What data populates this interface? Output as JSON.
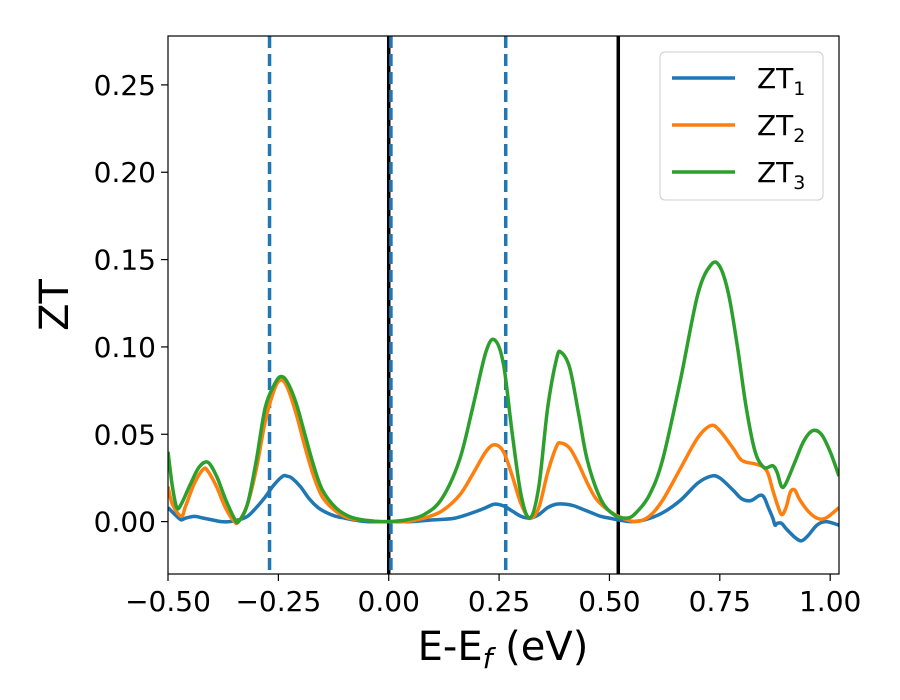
{
  "chart_data": {
    "type": "line",
    "xlabel_main": "E-E",
    "xlabel_sub": "f",
    "xlabel_unit": " (eV)",
    "ylabel": "ZT",
    "xlim": [
      -0.5,
      1.02
    ],
    "ylim": [
      -0.03,
      0.278
    ],
    "xticks": [
      -0.5,
      -0.25,
      0.0,
      0.25,
      0.5,
      0.75,
      1.0
    ],
    "xtick_labels": [
      "−0.50",
      "−0.25",
      "0.00",
      "0.25",
      "0.50",
      "0.75",
      "1.00"
    ],
    "yticks": [
      0.0,
      0.05,
      0.1,
      0.15,
      0.2,
      0.25
    ],
    "ytick_labels": [
      "0.00",
      "0.05",
      "0.10",
      "0.15",
      "0.20",
      "0.25"
    ],
    "legend_position": "top-right",
    "grid": false,
    "vlines": [
      {
        "x": -0.27,
        "style": "dashed",
        "color": "#1f77b4"
      },
      {
        "x": 0.0,
        "style": "solid",
        "color": "#000000"
      },
      {
        "x": 0.005,
        "style": "dashed",
        "color": "#1f77b4"
      },
      {
        "x": 0.265,
        "style": "dashed",
        "color": "#1f77b4"
      },
      {
        "x": 0.52,
        "style": "solid",
        "color": "#000000"
      }
    ],
    "series": [
      {
        "name_main": "ZT",
        "name_sub": "1",
        "color": "#1f77b4",
        "points": [
          [
            -0.5,
            0.008
          ],
          [
            -0.48,
            0.003
          ],
          [
            -0.47,
            0.001
          ],
          [
            -0.46,
            0.002
          ],
          [
            -0.44,
            0.003
          ],
          [
            -0.42,
            0.002
          ],
          [
            -0.4,
            0.001
          ],
          [
            -0.38,
            0.0
          ],
          [
            -0.36,
            0.0
          ],
          [
            -0.34,
            0.001
          ],
          [
            -0.32,
            0.003
          ],
          [
            -0.3,
            0.008
          ],
          [
            -0.28,
            0.014
          ],
          [
            -0.26,
            0.021
          ],
          [
            -0.24,
            0.026
          ],
          [
            -0.23,
            0.026
          ],
          [
            -0.22,
            0.025
          ],
          [
            -0.2,
            0.02
          ],
          [
            -0.18,
            0.013
          ],
          [
            -0.16,
            0.008
          ],
          [
            -0.14,
            0.005
          ],
          [
            -0.12,
            0.003
          ],
          [
            -0.1,
            0.002
          ],
          [
            -0.08,
            0.001
          ],
          [
            -0.05,
            0.0
          ],
          [
            0.0,
            0.0
          ],
          [
            0.05,
            0.0
          ],
          [
            0.1,
            0.001
          ],
          [
            0.15,
            0.002
          ],
          [
            0.2,
            0.006
          ],
          [
            0.22,
            0.008
          ],
          [
            0.24,
            0.01
          ],
          [
            0.26,
            0.009
          ],
          [
            0.28,
            0.006
          ],
          [
            0.3,
            0.003
          ],
          [
            0.32,
            0.002
          ],
          [
            0.34,
            0.004
          ],
          [
            0.36,
            0.008
          ],
          [
            0.38,
            0.01
          ],
          [
            0.4,
            0.01
          ],
          [
            0.42,
            0.009
          ],
          [
            0.44,
            0.007
          ],
          [
            0.46,
            0.005
          ],
          [
            0.48,
            0.003
          ],
          [
            0.5,
            0.002
          ],
          [
            0.52,
            0.001
          ],
          [
            0.55,
            0.0
          ],
          [
            0.58,
            0.001
          ],
          [
            0.62,
            0.005
          ],
          [
            0.66,
            0.012
          ],
          [
            0.7,
            0.022
          ],
          [
            0.73,
            0.026
          ],
          [
            0.75,
            0.025
          ],
          [
            0.78,
            0.018
          ],
          [
            0.8,
            0.013
          ],
          [
            0.82,
            0.012
          ],
          [
            0.84,
            0.015
          ],
          [
            0.85,
            0.014
          ],
          [
            0.86,
            0.008
          ],
          [
            0.87,
            0.002
          ],
          [
            0.875,
            -0.002
          ],
          [
            0.88,
            -0.001
          ],
          [
            0.89,
            -0.001
          ],
          [
            0.9,
            -0.004
          ],
          [
            0.92,
            -0.009
          ],
          [
            0.935,
            -0.011
          ],
          [
            0.95,
            -0.008
          ],
          [
            0.97,
            -0.002
          ],
          [
            0.99,
            0.0
          ],
          [
            1.02,
            -0.002
          ]
        ]
      },
      {
        "name_main": "ZT",
        "name_sub": "2",
        "color": "#ff7f0e",
        "points": [
          [
            -0.5,
            0.02
          ],
          [
            -0.49,
            0.01
          ],
          [
            -0.47,
            0.003
          ],
          [
            -0.46,
            0.009
          ],
          [
            -0.44,
            0.022
          ],
          [
            -0.42,
            0.03
          ],
          [
            -0.41,
            0.029
          ],
          [
            -0.39,
            0.02
          ],
          [
            -0.37,
            0.008
          ],
          [
            -0.35,
            0.0
          ],
          [
            -0.34,
            0.0
          ],
          [
            -0.32,
            0.01
          ],
          [
            -0.3,
            0.03
          ],
          [
            -0.28,
            0.057
          ],
          [
            -0.26,
            0.075
          ],
          [
            -0.245,
            0.081
          ],
          [
            -0.23,
            0.077
          ],
          [
            -0.21,
            0.062
          ],
          [
            -0.19,
            0.043
          ],
          [
            -0.17,
            0.026
          ],
          [
            -0.15,
            0.014
          ],
          [
            -0.12,
            0.006
          ],
          [
            -0.09,
            0.002
          ],
          [
            -0.06,
            0.001
          ],
          [
            -0.02,
            0.0
          ],
          [
            0.0,
            0.0
          ],
          [
            0.04,
            0.0
          ],
          [
            0.08,
            0.002
          ],
          [
            0.12,
            0.006
          ],
          [
            0.16,
            0.015
          ],
          [
            0.19,
            0.027
          ],
          [
            0.22,
            0.04
          ],
          [
            0.24,
            0.044
          ],
          [
            0.26,
            0.04
          ],
          [
            0.28,
            0.026
          ],
          [
            0.3,
            0.01
          ],
          [
            0.32,
            0.002
          ],
          [
            0.34,
            0.008
          ],
          [
            0.36,
            0.028
          ],
          [
            0.38,
            0.043
          ],
          [
            0.39,
            0.045
          ],
          [
            0.41,
            0.042
          ],
          [
            0.43,
            0.033
          ],
          [
            0.45,
            0.022
          ],
          [
            0.47,
            0.013
          ],
          [
            0.5,
            0.006
          ],
          [
            0.53,
            0.002
          ],
          [
            0.56,
            0.0
          ],
          [
            0.59,
            0.003
          ],
          [
            0.62,
            0.012
          ],
          [
            0.66,
            0.03
          ],
          [
            0.7,
            0.048
          ],
          [
            0.73,
            0.055
          ],
          [
            0.75,
            0.052
          ],
          [
            0.78,
            0.042
          ],
          [
            0.8,
            0.035
          ],
          [
            0.83,
            0.033
          ],
          [
            0.85,
            0.031
          ],
          [
            0.86,
            0.027
          ],
          [
            0.87,
            0.018
          ],
          [
            0.88,
            0.01
          ],
          [
            0.89,
            0.004
          ],
          [
            0.9,
            0.008
          ],
          [
            0.91,
            0.017
          ],
          [
            0.92,
            0.018
          ],
          [
            0.93,
            0.013
          ],
          [
            0.95,
            0.006
          ],
          [
            0.97,
            0.002
          ],
          [
            0.99,
            0.002
          ],
          [
            1.02,
            0.008
          ]
        ]
      },
      {
        "name_main": "ZT",
        "name_sub": "3",
        "color": "#2ca02c",
        "points": [
          [
            -0.5,
            0.04
          ],
          [
            -0.49,
            0.02
          ],
          [
            -0.48,
            0.008
          ],
          [
            -0.47,
            0.01
          ],
          [
            -0.45,
            0.021
          ],
          [
            -0.43,
            0.031
          ],
          [
            -0.41,
            0.034
          ],
          [
            -0.39,
            0.026
          ],
          [
            -0.37,
            0.013
          ],
          [
            -0.35,
            0.002
          ],
          [
            -0.34,
            0.0
          ],
          [
            -0.32,
            0.01
          ],
          [
            -0.3,
            0.035
          ],
          [
            -0.28,
            0.065
          ],
          [
            -0.26,
            0.078
          ],
          [
            -0.245,
            0.083
          ],
          [
            -0.23,
            0.08
          ],
          [
            -0.21,
            0.068
          ],
          [
            -0.19,
            0.05
          ],
          [
            -0.17,
            0.032
          ],
          [
            -0.15,
            0.018
          ],
          [
            -0.12,
            0.008
          ],
          [
            -0.09,
            0.003
          ],
          [
            -0.06,
            0.001
          ],
          [
            -0.02,
            0.0
          ],
          [
            0.0,
            0.0
          ],
          [
            0.04,
            0.001
          ],
          [
            0.08,
            0.004
          ],
          [
            0.12,
            0.013
          ],
          [
            0.16,
            0.035
          ],
          [
            0.19,
            0.065
          ],
          [
            0.22,
            0.097
          ],
          [
            0.24,
            0.104
          ],
          [
            0.26,
            0.09
          ],
          [
            0.28,
            0.05
          ],
          [
            0.3,
            0.015
          ],
          [
            0.32,
            0.002
          ],
          [
            0.34,
            0.02
          ],
          [
            0.36,
            0.065
          ],
          [
            0.38,
            0.093
          ],
          [
            0.39,
            0.097
          ],
          [
            0.41,
            0.088
          ],
          [
            0.43,
            0.062
          ],
          [
            0.45,
            0.035
          ],
          [
            0.48,
            0.013
          ],
          [
            0.51,
            0.004
          ],
          [
            0.54,
            0.002
          ],
          [
            0.56,
            0.005
          ],
          [
            0.59,
            0.015
          ],
          [
            0.62,
            0.035
          ],
          [
            0.66,
            0.08
          ],
          [
            0.7,
            0.13
          ],
          [
            0.73,
            0.147
          ],
          [
            0.75,
            0.146
          ],
          [
            0.77,
            0.13
          ],
          [
            0.79,
            0.1
          ],
          [
            0.81,
            0.065
          ],
          [
            0.83,
            0.04
          ],
          [
            0.85,
            0.031
          ],
          [
            0.87,
            0.032
          ],
          [
            0.88,
            0.028
          ],
          [
            0.89,
            0.02
          ],
          [
            0.9,
            0.022
          ],
          [
            0.92,
            0.034
          ],
          [
            0.94,
            0.046
          ],
          [
            0.96,
            0.052
          ],
          [
            0.98,
            0.05
          ],
          [
            1.0,
            0.04
          ],
          [
            1.02,
            0.026
          ]
        ]
      }
    ]
  }
}
